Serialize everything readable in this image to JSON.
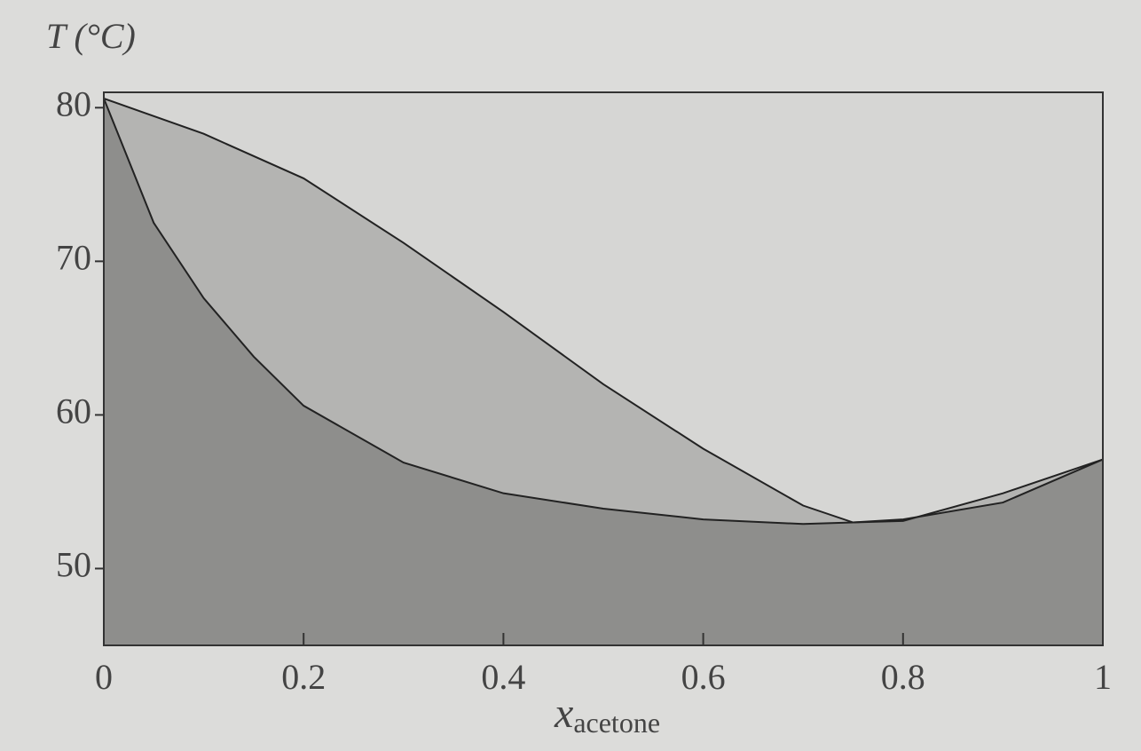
{
  "chart_data": {
    "type": "line",
    "ylabel": "T (°C)",
    "xlabel": "x",
    "xlabel_sub": "acetone",
    "xlim": [
      0,
      1
    ],
    "ylim": [
      45,
      81
    ],
    "xticks": [
      0,
      0.2,
      0.4,
      0.6,
      0.8,
      1
    ],
    "yticks": [
      50,
      60,
      70,
      80
    ],
    "series": [
      {
        "color": "#b4b4b2",
        "x": [
          0,
          0.1,
          0.2,
          0.3,
          0.4,
          0.5,
          0.6,
          0.7,
          0.75,
          0.8,
          0.9,
          1
        ],
        "values": [
          80.6,
          78.3,
          75.4,
          71.2,
          66.7,
          62.0,
          57.8,
          54.1,
          53.0,
          53.1,
          54.9,
          57.1
        ]
      },
      {
        "color": "#8e8e8c",
        "x": [
          0,
          0.05,
          0.1,
          0.15,
          0.2,
          0.3,
          0.4,
          0.5,
          0.6,
          0.7,
          0.75,
          0.8,
          0.9,
          1
        ],
        "values": [
          80.6,
          72.5,
          67.6,
          63.8,
          60.6,
          56.9,
          54.9,
          53.9,
          53.2,
          52.9,
          53.0,
          53.2,
          54.3,
          57.1
        ]
      }
    ]
  }
}
